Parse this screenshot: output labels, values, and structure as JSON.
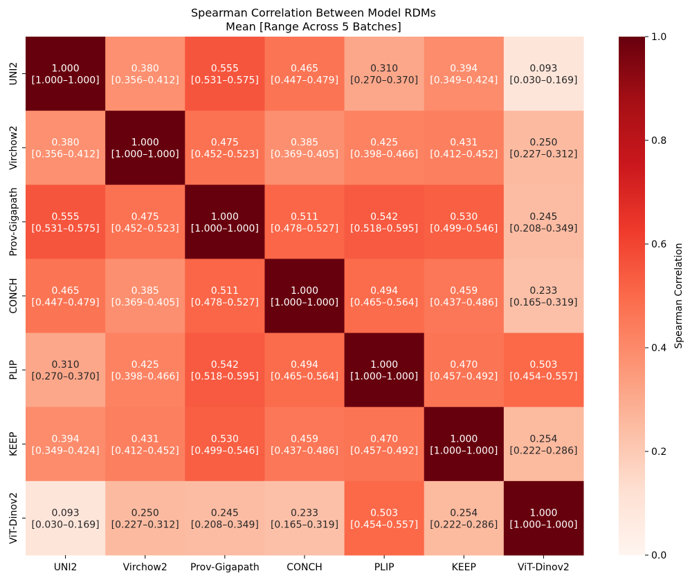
{
  "chart_data": {
    "type": "heatmap",
    "title": "Spearman Correlation Between Model RDMs",
    "subtitle": "Mean [Range Across 5 Batches]",
    "rows": [
      "UNI2",
      "Virchow2",
      "Prov-Gigapath",
      "CONCH",
      "PLIP",
      "KEEP",
      "ViT-Dinov2"
    ],
    "columns": [
      "UNI2",
      "Virchow2",
      "Prov-Gigapath",
      "CONCH",
      "PLIP",
      "KEEP",
      "ViT-Dinov2"
    ],
    "mean": [
      [
        1.0,
        0.38,
        0.555,
        0.465,
        0.31,
        0.394,
        0.093
      ],
      [
        0.38,
        1.0,
        0.475,
        0.385,
        0.425,
        0.431,
        0.25
      ],
      [
        0.555,
        0.475,
        1.0,
        0.511,
        0.542,
        0.53,
        0.245
      ],
      [
        0.465,
        0.385,
        0.511,
        1.0,
        0.494,
        0.459,
        0.233
      ],
      [
        0.31,
        0.425,
        0.542,
        0.494,
        1.0,
        0.47,
        0.503
      ],
      [
        0.394,
        0.431,
        0.53,
        0.459,
        0.47,
        1.0,
        0.254
      ],
      [
        0.093,
        0.25,
        0.245,
        0.233,
        0.503,
        0.254,
        1.0
      ]
    ],
    "labels_mean": [
      [
        "1.000",
        "0.380",
        "0.555",
        "0.465",
        "0.310",
        "0.394",
        "0.093"
      ],
      [
        "0.380",
        "1.000",
        "0.475",
        "0.385",
        "0.425",
        "0.431",
        "0.250"
      ],
      [
        "0.555",
        "0.475",
        "1.000",
        "0.511",
        "0.542",
        "0.530",
        "0.245"
      ],
      [
        "0.465",
        "0.385",
        "0.511",
        "1.000",
        "0.494",
        "0.459",
        "0.233"
      ],
      [
        "0.310",
        "0.425",
        "0.542",
        "0.494",
        "1.000",
        "0.470",
        "0.503"
      ],
      [
        "0.394",
        "0.431",
        "0.530",
        "0.459",
        "0.470",
        "1.000",
        "0.254"
      ],
      [
        "0.093",
        "0.250",
        "0.245",
        "0.233",
        "0.503",
        "0.254",
        "1.000"
      ]
    ],
    "labels_range": [
      [
        "[1.000–1.000]",
        "[0.356–0.412]",
        "[0.531–0.575]",
        "[0.447–0.479]",
        "[0.270–0.370]",
        "[0.349–0.424]",
        "[0.030–0.169]"
      ],
      [
        "[0.356–0.412]",
        "[1.000–1.000]",
        "[0.452–0.523]",
        "[0.369–0.405]",
        "[0.398–0.466]",
        "[0.412–0.452]",
        "[0.227–0.312]"
      ],
      [
        "[0.531–0.575]",
        "[0.452–0.523]",
        "[1.000–1.000]",
        "[0.478–0.527]",
        "[0.518–0.595]",
        "[0.499–0.546]",
        "[0.208–0.349]"
      ],
      [
        "[0.447–0.479]",
        "[0.369–0.405]",
        "[0.478–0.527]",
        "[1.000–1.000]",
        "[0.465–0.564]",
        "[0.437–0.486]",
        "[0.165–0.319]"
      ],
      [
        "[0.270–0.370]",
        "[0.398–0.466]",
        "[0.518–0.595]",
        "[0.465–0.564]",
        "[1.000–1.000]",
        "[0.457–0.492]",
        "[0.454–0.557]"
      ],
      [
        "[0.349–0.424]",
        "[0.412–0.452]",
        "[0.499–0.546]",
        "[0.437–0.486]",
        "[0.457–0.492]",
        "[1.000–1.000]",
        "[0.222–0.286]"
      ],
      [
        "[0.030–0.169]",
        "[0.227–0.312]",
        "[0.208–0.349]",
        "[0.165–0.319]",
        "[0.454–0.557]",
        "[0.222–0.286]",
        "[1.000–1.000]"
      ]
    ],
    "colormap": "Reds",
    "vmin": 0.0,
    "vmax": 1.0,
    "colorbar": {
      "label": "Spearman Correlation",
      "ticks": [
        "0.0",
        "0.2",
        "0.4",
        "0.6",
        "0.8",
        "1.0"
      ],
      "tick_values": [
        0.0,
        0.2,
        0.4,
        0.6,
        0.8,
        1.0
      ]
    },
    "colors": {
      "reds_stops": [
        "#fff5f0",
        "#fee0d2",
        "#fcbba1",
        "#fc9272",
        "#fb6a4a",
        "#ef3b2c",
        "#cb181d",
        "#a50f15",
        "#67000d"
      ],
      "text_dark": "#262626",
      "text_light": "#ffffff"
    }
  }
}
